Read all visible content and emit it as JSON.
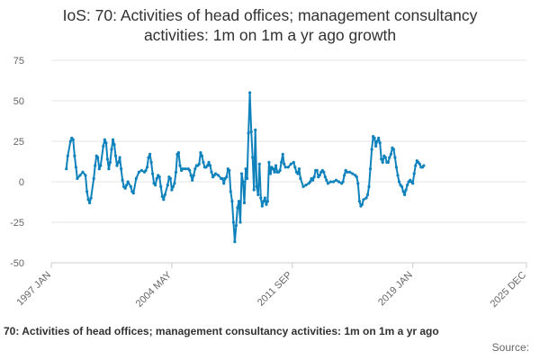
{
  "header": {
    "title_line1": "IoS: 70: Activities of head offices; management consultancy",
    "title_line2": "activities: 1m on 1m a yr ago growth"
  },
  "footer": {
    "legend_label": "70: Activities of head offices; management consultancy activities: 1m on 1m a yr ago",
    "source_label": "Source:"
  },
  "colors": {
    "series": "#0f82bc",
    "grid": "#e6e6e6",
    "axis_text": "#666666"
  },
  "chart_data": {
    "type": "line",
    "title": "IoS: 70: Activities of head offices; management consultancy activities: 1m on 1m a yr ago growth",
    "xlabel": "",
    "ylabel": "",
    "ylim": [
      -50,
      75
    ],
    "yticks": [
      75,
      50,
      25,
      0,
      -25,
      -50
    ],
    "xlim": [
      "1997-01",
      "2025-12"
    ],
    "xticks": [
      "1997 JAN",
      "2004 MAY",
      "2011 SEP",
      "2019 JAN",
      "2025 DEC"
    ],
    "grid": true,
    "legend": "bottom",
    "series": [
      {
        "name": "70: Activities of head offices; management consultancy activities: 1m on 1m a yr ago",
        "points": [
          [
            "1997-12",
            8
          ],
          [
            "1998-01",
            16
          ],
          [
            "1998-03",
            25
          ],
          [
            "1998-04",
            27
          ],
          [
            "1998-05",
            26
          ],
          [
            "1998-06",
            16
          ],
          [
            "1998-07",
            9
          ],
          [
            "1998-08",
            2
          ],
          [
            "1998-10",
            4
          ],
          [
            "1998-12",
            6
          ],
          [
            "1999-02",
            4
          ],
          [
            "1999-03",
            -6
          ],
          [
            "1999-04",
            -11
          ],
          [
            "1999-05",
            -13
          ],
          [
            "1999-06",
            -10
          ],
          [
            "1999-08",
            2
          ],
          [
            "1999-09",
            10
          ],
          [
            "1999-10",
            16
          ],
          [
            "1999-11",
            15
          ],
          [
            "1999-12",
            8
          ],
          [
            "2000-01",
            10
          ],
          [
            "2000-03",
            22
          ],
          [
            "2000-04",
            26
          ],
          [
            "2000-05",
            24
          ],
          [
            "2000-06",
            14
          ],
          [
            "2000-07",
            8
          ],
          [
            "2000-08",
            12
          ],
          [
            "2000-09",
            20
          ],
          [
            "2000-10",
            26
          ],
          [
            "2000-11",
            23
          ],
          [
            "2000-12",
            16
          ],
          [
            "2001-01",
            10
          ],
          [
            "2001-02",
            12
          ],
          [
            "2001-03",
            15
          ],
          [
            "2001-04",
            8
          ],
          [
            "2001-05",
            1
          ],
          [
            "2001-06",
            -3
          ],
          [
            "2001-07",
            -4
          ],
          [
            "2001-08",
            -2
          ],
          [
            "2001-09",
            0
          ],
          [
            "2001-11",
            -3
          ],
          [
            "2001-12",
            -6
          ],
          [
            "2002-01",
            -7
          ],
          [
            "2002-03",
            2
          ],
          [
            "2002-05",
            6
          ],
          [
            "2002-07",
            7
          ],
          [
            "2002-09",
            6
          ],
          [
            "2002-10",
            7
          ],
          [
            "2002-11",
            9
          ],
          [
            "2002-12",
            15
          ],
          [
            "2003-01",
            17
          ],
          [
            "2003-02",
            12
          ],
          [
            "2003-03",
            5
          ],
          [
            "2003-04",
            -1
          ],
          [
            "2003-05",
            -2
          ],
          [
            "2003-06",
            2
          ],
          [
            "2003-07",
            4
          ],
          [
            "2003-08",
            3
          ],
          [
            "2003-09",
            -3
          ],
          [
            "2003-10",
            -9
          ],
          [
            "2003-11",
            -11
          ],
          [
            "2003-12",
            -8
          ],
          [
            "2004-02",
            -2
          ],
          [
            "2004-03",
            3
          ],
          [
            "2004-04",
            2
          ],
          [
            "2004-05",
            -5
          ],
          [
            "2004-06",
            -3
          ],
          [
            "2004-07",
            -1
          ],
          [
            "2004-08",
            6
          ],
          [
            "2004-09",
            17
          ],
          [
            "2004-10",
            18
          ],
          [
            "2004-11",
            10
          ],
          [
            "2004-12",
            7
          ],
          [
            "2005-01",
            8
          ],
          [
            "2005-03",
            8
          ],
          [
            "2005-05",
            8
          ],
          [
            "2005-06",
            7
          ],
          [
            "2005-07",
            4
          ],
          [
            "2005-08",
            1
          ],
          [
            "2005-09",
            4
          ],
          [
            "2005-10",
            8
          ],
          [
            "2005-11",
            10
          ],
          [
            "2005-12",
            10
          ],
          [
            "2006-01",
            11
          ],
          [
            "2006-02",
            18
          ],
          [
            "2006-03",
            16
          ],
          [
            "2006-04",
            12
          ],
          [
            "2006-05",
            9
          ],
          [
            "2006-06",
            9
          ],
          [
            "2006-07",
            10
          ],
          [
            "2006-08",
            12
          ],
          [
            "2006-09",
            10
          ],
          [
            "2006-10",
            6
          ],
          [
            "2006-11",
            3
          ],
          [
            "2006-12",
            4
          ],
          [
            "2007-01",
            5
          ],
          [
            "2007-03",
            4
          ],
          [
            "2007-05",
            2
          ],
          [
            "2007-06",
            2
          ],
          [
            "2007-07",
            -1
          ],
          [
            "2007-08",
            2
          ],
          [
            "2007-09",
            3
          ],
          [
            "2007-10",
            8
          ],
          [
            "2007-11",
            7
          ],
          [
            "2007-12",
            -6
          ],
          [
            "2008-01",
            -12
          ],
          [
            "2008-02",
            -25
          ],
          [
            "2008-03",
            -37
          ],
          [
            "2008-04",
            -27
          ],
          [
            "2008-05",
            -16
          ],
          [
            "2008-06",
            -12
          ],
          [
            "2008-07",
            -25
          ],
          [
            "2008-08",
            5
          ],
          [
            "2008-09",
            0
          ],
          [
            "2008-10",
            -13
          ],
          [
            "2008-11",
            8
          ],
          [
            "2008-12",
            2
          ],
          [
            "2009-01",
            30
          ],
          [
            "2009-02",
            55
          ],
          [
            "2009-03",
            31
          ],
          [
            "2009-04",
            15
          ],
          [
            "2009-05",
            -5
          ],
          [
            "2009-06",
            32
          ],
          [
            "2009-07",
            -3
          ],
          [
            "2009-08",
            -8
          ],
          [
            "2009-09",
            11
          ],
          [
            "2009-10",
            -10
          ],
          [
            "2009-11",
            -15
          ],
          [
            "2009-12",
            -12
          ],
          [
            "2010-01",
            -10
          ],
          [
            "2010-02",
            -14
          ],
          [
            "2010-03",
            -12
          ],
          [
            "2010-04",
            12
          ],
          [
            "2010-05",
            5
          ],
          [
            "2010-06",
            9
          ],
          [
            "2010-07",
            8
          ],
          [
            "2010-08",
            6
          ],
          [
            "2010-09",
            10
          ],
          [
            "2010-10",
            6
          ],
          [
            "2010-11",
            6
          ],
          [
            "2010-12",
            7
          ],
          [
            "2011-01",
            12
          ],
          [
            "2011-02",
            17
          ],
          [
            "2011-03",
            11
          ],
          [
            "2011-04",
            9
          ],
          [
            "2011-06",
            9
          ],
          [
            "2011-08",
            11
          ],
          [
            "2011-10",
            12
          ],
          [
            "2011-11",
            9
          ],
          [
            "2011-12",
            6
          ],
          [
            "2012-01",
            5
          ],
          [
            "2012-02",
            8
          ],
          [
            "2012-03",
            2
          ],
          [
            "2012-05",
            -3
          ],
          [
            "2012-07",
            -2
          ],
          [
            "2012-09",
            -1
          ],
          [
            "2012-10",
            0
          ],
          [
            "2012-11",
            2
          ],
          [
            "2012-12",
            1
          ],
          [
            "2013-01",
            3
          ],
          [
            "2013-02",
            7
          ],
          [
            "2013-03",
            7
          ],
          [
            "2013-04",
            3
          ],
          [
            "2013-05",
            4
          ],
          [
            "2013-06",
            6
          ],
          [
            "2013-07",
            7
          ],
          [
            "2013-08",
            6
          ],
          [
            "2013-09",
            3
          ],
          [
            "2013-10",
            1
          ],
          [
            "2013-11",
            -1
          ],
          [
            "2014-01",
            0
          ],
          [
            "2014-03",
            0
          ],
          [
            "2014-05",
            1
          ],
          [
            "2014-07",
            0
          ],
          [
            "2014-09",
            -1
          ],
          [
            "2014-10",
            0
          ],
          [
            "2014-11",
            4
          ],
          [
            "2014-12",
            7
          ],
          [
            "2015-01",
            6
          ],
          [
            "2015-03",
            6
          ],
          [
            "2015-05",
            5
          ],
          [
            "2015-07",
            4
          ],
          [
            "2015-08",
            3
          ],
          [
            "2015-09",
            -1
          ],
          [
            "2015-10",
            -12
          ],
          [
            "2015-11",
            -15
          ],
          [
            "2015-12",
            -14
          ],
          [
            "2016-01",
            -11
          ],
          [
            "2016-03",
            -10
          ],
          [
            "2016-04",
            -8
          ],
          [
            "2016-05",
            -3
          ],
          [
            "2016-06",
            8
          ],
          [
            "2016-07",
            20
          ],
          [
            "2016-08",
            28
          ],
          [
            "2016-09",
            27
          ],
          [
            "2016-10",
            22
          ],
          [
            "2016-11",
            25
          ],
          [
            "2016-12",
            27
          ],
          [
            "2017-01",
            24
          ],
          [
            "2017-02",
            14
          ],
          [
            "2017-03",
            12
          ],
          [
            "2017-04",
            16
          ],
          [
            "2017-05",
            15
          ],
          [
            "2017-06",
            12
          ],
          [
            "2017-07",
            12
          ],
          [
            "2017-08",
            15
          ],
          [
            "2017-09",
            17
          ],
          [
            "2017-10",
            21
          ],
          [
            "2017-11",
            20
          ],
          [
            "2017-12",
            15
          ],
          [
            "2018-01",
            9
          ],
          [
            "2018-02",
            4
          ],
          [
            "2018-03",
            0
          ],
          [
            "2018-04",
            -2
          ],
          [
            "2018-05",
            -3
          ],
          [
            "2018-06",
            -6
          ],
          [
            "2018-07",
            -8
          ],
          [
            "2018-08",
            -5
          ],
          [
            "2018-09",
            -2
          ],
          [
            "2018-10",
            0
          ],
          [
            "2018-11",
            1
          ],
          [
            "2018-12",
            0
          ],
          [
            "2019-01",
            -1
          ],
          [
            "2019-02",
            5
          ],
          [
            "2019-03",
            10
          ],
          [
            "2019-04",
            13
          ],
          [
            "2019-05",
            12
          ],
          [
            "2019-06",
            11
          ],
          [
            "2019-07",
            9
          ],
          [
            "2019-08",
            9
          ],
          [
            "2019-09",
            10
          ]
        ]
      }
    ]
  }
}
